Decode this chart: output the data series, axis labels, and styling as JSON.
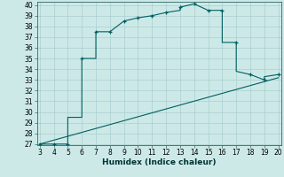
{
  "title": "",
  "xlabel": "Humidex (Indice chaleur)",
  "xlim": [
    3,
    20
  ],
  "ylim": [
    27,
    40
  ],
  "xticks": [
    3,
    4,
    5,
    6,
    7,
    8,
    9,
    10,
    11,
    12,
    13,
    14,
    15,
    16,
    17,
    18,
    19,
    20
  ],
  "yticks": [
    27,
    28,
    29,
    30,
    31,
    32,
    33,
    34,
    35,
    36,
    37,
    38,
    39,
    40
  ],
  "curve_x": [
    3,
    4,
    5,
    5,
    6,
    6,
    7,
    7,
    8,
    9,
    9,
    10,
    11,
    12,
    13,
    13,
    14,
    15,
    15,
    16,
    16,
    17,
    17,
    18,
    19,
    19,
    20
  ],
  "curve_y": [
    27,
    27,
    27,
    29.5,
    29.5,
    35,
    35,
    37.5,
    37.5,
    38.5,
    38.5,
    38.8,
    39.0,
    39.3,
    39.5,
    39.8,
    40.1,
    39.5,
    39.5,
    39.5,
    36.5,
    36.5,
    33.8,
    33.5,
    33.0,
    33.3,
    33.5
  ],
  "line_x": [
    3,
    20
  ],
  "line_y": [
    27,
    33.2
  ],
  "marker_x": [
    3,
    4,
    5,
    6,
    7,
    8,
    9,
    10,
    11,
    12,
    13,
    14,
    15,
    16,
    17,
    18,
    19,
    20
  ],
  "marker_y": [
    27,
    27,
    27,
    35,
    37.5,
    37.5,
    38.5,
    38.8,
    39.0,
    39.3,
    39.8,
    40.1,
    39.5,
    39.5,
    36.5,
    33.5,
    33.0,
    33.5
  ],
  "bg_color": "#cce9e8",
  "line_color": "#005f5f",
  "grid_color": "#aacfcf",
  "tick_fontsize": 5.5,
  "label_fontsize": 6.5
}
